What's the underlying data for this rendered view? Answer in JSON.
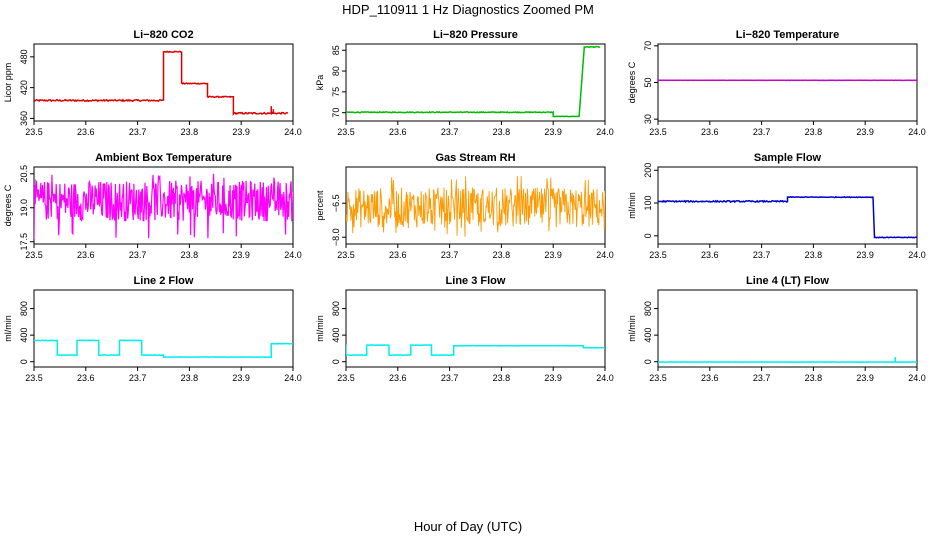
{
  "figure": {
    "title": "HDP_110911  1 Hz Diagnostics Zoomed PM",
    "xlabel": "Hour of Day (UTC)"
  },
  "chart_data": [
    {
      "type": "line",
      "title": "Li−820 CO2",
      "ylabel": "Licor ppm",
      "color": "#dd0000",
      "xlim": [
        23.5,
        24.0
      ],
      "ylim": [
        355,
        505
      ],
      "xticks": [
        "23.5",
        "23.6",
        "23.7",
        "23.8",
        "23.9",
        "24.0"
      ],
      "yticks": [
        "360",
        "420",
        "480"
      ],
      "segments": [
        [
          23.5,
          23.75,
          395,
          3
        ],
        [
          23.75,
          23.785,
          490,
          2
        ],
        [
          23.785,
          23.835,
          428,
          2
        ],
        [
          23.835,
          23.885,
          402,
          2
        ],
        [
          23.885,
          23.99,
          370,
          3
        ]
      ],
      "spikes": [
        [
          23.958,
          384
        ],
        [
          23.962,
          378
        ]
      ]
    },
    {
      "type": "line",
      "title": "Li−820 Pressure",
      "ylabel": "kPa",
      "color": "#00bb00",
      "xlim": [
        23.5,
        24.0
      ],
      "ylim": [
        68,
        86.5
      ],
      "xticks": [
        "23.5",
        "23.6",
        "23.7",
        "23.8",
        "23.9",
        "24.0"
      ],
      "yticks": [
        "70",
        "75",
        "80",
        "85"
      ],
      "segments": [
        [
          23.5,
          23.9,
          70.1,
          0.2
        ],
        [
          23.9,
          23.95,
          69.1,
          0.1
        ],
        [
          23.96,
          23.99,
          85.8,
          0.2
        ]
      ],
      "ramp": [
        [
          23.95,
          69.1
        ],
        [
          23.96,
          85.8
        ]
      ]
    },
    {
      "type": "line",
      "title": "Li−820 Temperature",
      "ylabel": "degrees C",
      "color": "#cc00cc",
      "xlim": [
        23.5,
        24.0
      ],
      "ylim": [
        29,
        71
      ],
      "xticks": [
        "23.5",
        "23.6",
        "23.7",
        "23.8",
        "23.9",
        "24.0"
      ],
      "yticks": [
        "30",
        "50",
        "70"
      ],
      "segments": [
        [
          23.5,
          24.0,
          51.2,
          0.1
        ]
      ]
    },
    {
      "type": "line",
      "title": "Ambient Box Temperature",
      "ylabel": "degrees C",
      "color": "#ff00ff",
      "xlim": [
        23.5,
        24.0
      ],
      "ylim": [
        17.4,
        20.8
      ],
      "xticks": [
        "23.5",
        "23.6",
        "23.7",
        "23.8",
        "23.9",
        "24.0"
      ],
      "yticks": [
        "17.5",
        "19.0",
        "20.5"
      ],
      "noise": {
        "center": 19.3,
        "amp": 0.9,
        "dips": 17.6,
        "peaks": 20.5,
        "lw": 1.2
      }
    },
    {
      "type": "line",
      "title": "Gas Stream RH",
      "ylabel": "percent",
      "color": "#ff9900",
      "xlim": [
        23.5,
        24.0
      ],
      "ylim": [
        -8.3,
        -4.9
      ],
      "xticks": [
        "23.5",
        "23.6",
        "23.7",
        "23.8",
        "23.9",
        "24.0"
      ],
      "yticks": [
        "−8.0",
        "−6.5"
      ],
      "noise": {
        "center": -6.7,
        "amp": 0.9,
        "dips": -8.0,
        "peaks": -5.3,
        "lw": 0.9
      }
    },
    {
      "type": "line",
      "title": "Sample Flow",
      "ylabel": "ml/min",
      "color": "#0000cc",
      "xlim": [
        23.5,
        24.0
      ],
      "ylim": [
        -25,
        210
      ],
      "xticks": [
        "23.5",
        "23.6",
        "23.7",
        "23.8",
        "23.9",
        "24.0"
      ],
      "yticks": [
        "0",
        "100",
        "200"
      ],
      "segments": [
        [
          23.5,
          23.75,
          105,
          4
        ],
        [
          23.75,
          23.915,
          118,
          2
        ],
        [
          23.918,
          24.0,
          -5,
          2
        ]
      ]
    },
    {
      "type": "line",
      "title": "Line 2 Flow",
      "ylabel": "ml/min",
      "color": "#00eeee",
      "xlim": [
        23.5,
        24.0
      ],
      "ylim": [
        -80,
        1080
      ],
      "xticks": [
        "23.5",
        "23.6",
        "23.7",
        "23.8",
        "23.9",
        "24.0"
      ],
      "yticks": [
        "0",
        "400",
        "800"
      ],
      "segments": [
        [
          23.5,
          23.545,
          320,
          5
        ],
        [
          23.545,
          23.583,
          100,
          5
        ],
        [
          23.583,
          23.625,
          320,
          5
        ],
        [
          23.625,
          23.665,
          100,
          5
        ],
        [
          23.665,
          23.708,
          320,
          5
        ],
        [
          23.708,
          23.75,
          100,
          5
        ],
        [
          23.75,
          23.958,
          70,
          4
        ],
        [
          23.958,
          24.0,
          270,
          8
        ]
      ]
    },
    {
      "type": "line",
      "title": "Line 3 Flow",
      "ylabel": "ml/min",
      "color": "#00eeee",
      "xlim": [
        23.5,
        24.0
      ],
      "ylim": [
        -80,
        1080
      ],
      "xticks": [
        "23.5",
        "23.6",
        "23.7",
        "23.8",
        "23.9",
        "24.0"
      ],
      "yticks": [
        "0",
        "400",
        "800"
      ],
      "segments": [
        [
          23.5,
          23.5,
          100,
          0
        ],
        [
          23.5,
          23.54,
          100,
          5
        ],
        [
          23.54,
          23.583,
          250,
          5
        ],
        [
          23.583,
          23.625,
          100,
          5
        ],
        [
          23.625,
          23.665,
          250,
          5
        ],
        [
          23.665,
          23.708,
          100,
          5
        ],
        [
          23.708,
          23.958,
          240,
          4
        ],
        [
          23.958,
          24.0,
          210,
          6
        ]
      ],
      "spikes": [
        [
          23.5,
          260
        ]
      ]
    },
    {
      "type": "line",
      "title": "Line 4 (LT) Flow",
      "ylabel": "ml/min",
      "color": "#00eeee",
      "xlim": [
        23.5,
        24.0
      ],
      "ylim": [
        -80,
        1080
      ],
      "xticks": [
        "23.5",
        "23.6",
        "23.7",
        "23.8",
        "23.9",
        "24.0"
      ],
      "yticks": [
        "0",
        "400",
        "800"
      ],
      "segments": [
        [
          23.5,
          24.0,
          -5,
          3
        ]
      ],
      "spikes": [
        [
          23.958,
          70
        ]
      ]
    }
  ]
}
